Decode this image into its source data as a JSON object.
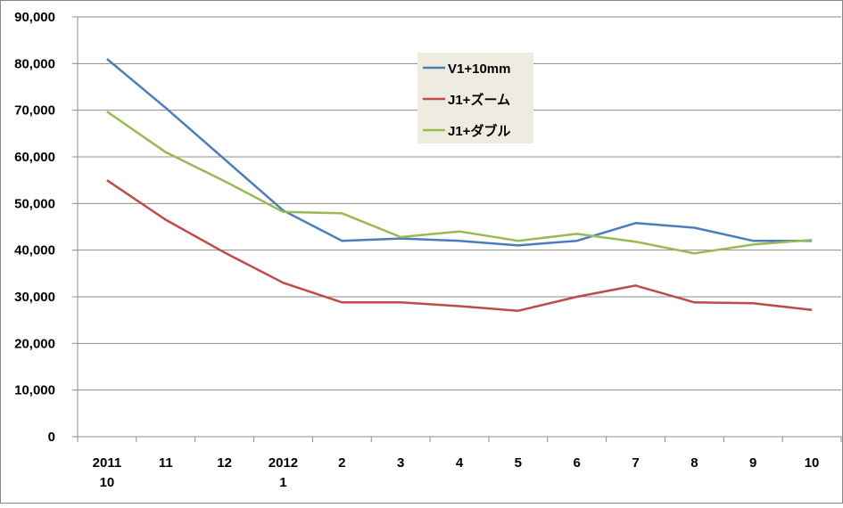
{
  "chart_data": {
    "type": "line",
    "title": "",
    "xlabel": "",
    "ylabel": "",
    "categories": [
      [
        "2011",
        "10"
      ],
      [
        "11"
      ],
      [
        "12"
      ],
      [
        "2012",
        "1"
      ],
      [
        "2"
      ],
      [
        "3"
      ],
      [
        "4"
      ],
      [
        "5"
      ],
      [
        "6"
      ],
      [
        "7"
      ],
      [
        "8"
      ],
      [
        "9"
      ],
      [
        "10"
      ]
    ],
    "ylim": [
      0,
      90000
    ],
    "yticks": [
      "0",
      "10,000",
      "20,000",
      "30,000",
      "40,000",
      "50,000",
      "60,000",
      "70,000",
      "80,000",
      "90,000"
    ],
    "grid": true,
    "legend_position": "top-center",
    "series": [
      {
        "name": "V1+10mm",
        "color": "#4a7ebb",
        "values": [
          81000,
          70500,
          59500,
          48500,
          42000,
          42500,
          42000,
          41000,
          42000,
          45800,
          44800,
          42000,
          42000
        ]
      },
      {
        "name": "J1+ズーム",
        "color": "#be4b48",
        "values": [
          55000,
          46500,
          39500,
          33000,
          28800,
          28800,
          28000,
          27000,
          30000,
          32400,
          28800,
          28600,
          27200
        ]
      },
      {
        "name": "J1+ダブル",
        "color": "#98b954",
        "values": [
          69700,
          61000,
          54800,
          48200,
          47900,
          42800,
          44000,
          42000,
          43500,
          41800,
          39300,
          41200,
          42200
        ]
      }
    ]
  }
}
